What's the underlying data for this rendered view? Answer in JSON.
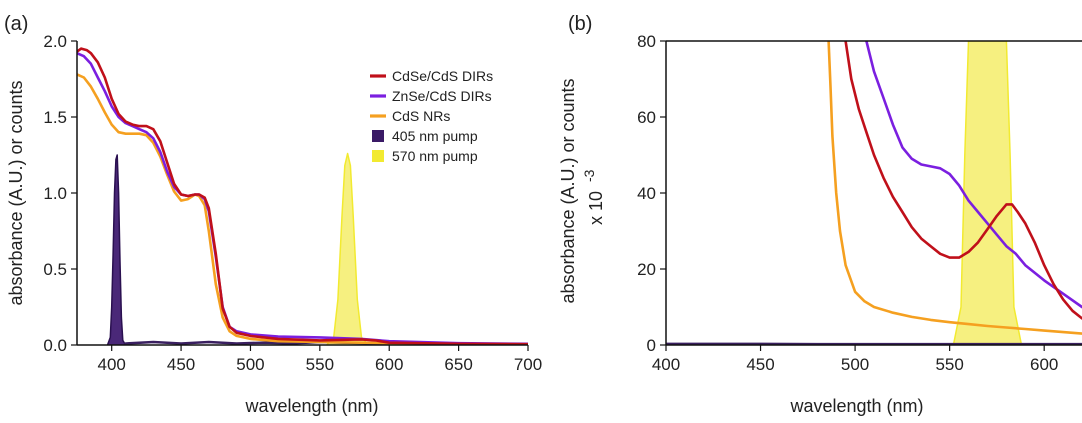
{
  "chart_data": [
    {
      "type": "line",
      "panel_label": "(a)",
      "xlabel": "wavelength (nm)",
      "ylabel": "absorbance (A.U.) or counts",
      "ylabel_suffix": "",
      "xlim": [
        375,
        700
      ],
      "ylim": [
        0,
        2.0
      ],
      "xticks": [
        400,
        450,
        500,
        550,
        600,
        650,
        700
      ],
      "yticks": [
        0.0,
        0.5,
        1.0,
        1.5,
        2.0
      ],
      "ytick_labels": [
        "0.0",
        "0.5",
        "1.0",
        "1.5",
        "2.0"
      ],
      "legend_position": "top-right",
      "legend": [
        {
          "label": "CdSe/CdS DIRs",
          "color": "#c0101a",
          "marker": "line"
        },
        {
          "label": "ZnSe/CdS DIRs",
          "color": "#7b1fe0",
          "marker": "line"
        },
        {
          "label": "CdS NRs",
          "color": "#f5a020",
          "marker": "line"
        },
        {
          "label": "405 nm pump",
          "color": "#3a1a66",
          "marker": "box"
        },
        {
          "label": "570 nm pump",
          "color": "#f2ea30",
          "marker": "box"
        }
      ],
      "series": [
        {
          "color": "#f2ea30",
          "fill": "#f6f080",
          "filled": true,
          "x": [
            555,
            560,
            563,
            566,
            568,
            570,
            572,
            574,
            577,
            580,
            585
          ],
          "y": [
            0.0,
            0.05,
            0.3,
            0.85,
            1.18,
            1.26,
            1.18,
            0.85,
            0.3,
            0.05,
            0.0
          ]
        },
        {
          "color": "#2a1050",
          "fill": "#4a2878",
          "filled": true,
          "x": [
            397,
            399,
            400,
            401,
            402,
            403,
            404,
            405,
            406,
            407,
            408,
            410
          ],
          "y": [
            0.0,
            0.05,
            0.25,
            0.6,
            1.0,
            1.22,
            1.25,
            1.0,
            0.55,
            0.18,
            0.03,
            0.0
          ]
        },
        {
          "color": "#3a2060",
          "filled": false,
          "x": [
            410,
            430,
            450,
            470,
            490,
            510,
            530,
            550,
            570,
            590,
            610,
            640,
            670,
            700
          ],
          "y": [
            0.01,
            0.02,
            0.01,
            0.02,
            0.01,
            0.015,
            0.01,
            0.02,
            0.015,
            0.01,
            0.01,
            0.01,
            0.005,
            0.005
          ]
        },
        {
          "color": "#f5a020",
          "filled": false,
          "x": [
            375,
            380,
            385,
            390,
            395,
            400,
            405,
            410,
            415,
            420,
            425,
            430,
            435,
            440,
            445,
            450,
            455,
            460,
            463,
            467,
            470,
            475,
            480,
            485,
            490,
            500,
            520,
            550,
            600,
            650,
            700
          ],
          "y": [
            1.78,
            1.76,
            1.7,
            1.62,
            1.53,
            1.45,
            1.4,
            1.39,
            1.39,
            1.39,
            1.38,
            1.33,
            1.24,
            1.12,
            1.01,
            0.95,
            0.96,
            0.99,
            0.98,
            0.92,
            0.75,
            0.4,
            0.18,
            0.09,
            0.06,
            0.04,
            0.025,
            0.02,
            0.012,
            0.008,
            0.005
          ]
        },
        {
          "color": "#7b1fe0",
          "filled": false,
          "x": [
            375,
            380,
            385,
            390,
            395,
            400,
            405,
            410,
            415,
            420,
            425,
            430,
            435,
            440,
            445,
            450,
            455,
            460,
            463,
            467,
            470,
            475,
            480,
            485,
            490,
            500,
            520,
            550,
            580,
            600,
            650,
            700
          ],
          "y": [
            1.92,
            1.9,
            1.85,
            1.76,
            1.67,
            1.57,
            1.5,
            1.46,
            1.44,
            1.42,
            1.4,
            1.36,
            1.27,
            1.14,
            1.04,
            0.99,
            0.98,
            0.99,
            0.99,
            0.96,
            0.88,
            0.58,
            0.25,
            0.12,
            0.09,
            0.07,
            0.055,
            0.05,
            0.04,
            0.025,
            0.012,
            0.008
          ]
        },
        {
          "color": "#c0101a",
          "filled": false,
          "x": [
            375,
            378,
            382,
            385,
            390,
            395,
            400,
            405,
            410,
            415,
            420,
            425,
            430,
            435,
            440,
            445,
            450,
            455,
            460,
            463,
            467,
            470,
            475,
            480,
            485,
            490,
            500,
            520,
            550,
            570,
            580,
            590,
            600,
            650,
            700
          ],
          "y": [
            1.93,
            1.95,
            1.94,
            1.92,
            1.86,
            1.76,
            1.62,
            1.52,
            1.47,
            1.45,
            1.44,
            1.44,
            1.42,
            1.34,
            1.2,
            1.06,
            0.99,
            0.98,
            0.99,
            0.99,
            0.97,
            0.9,
            0.6,
            0.24,
            0.12,
            0.08,
            0.06,
            0.04,
            0.03,
            0.035,
            0.037,
            0.03,
            0.015,
            0.008,
            0.005
          ]
        }
      ]
    },
    {
      "type": "line",
      "panel_label": "(b)",
      "xlabel": "wavelength (nm)",
      "ylabel": "absorbance (A.U.) or counts",
      "ylabel_suffix": "x 10",
      "ylabel_exponent": "-3",
      "xlim": [
        400,
        620
      ],
      "ylim": [
        0,
        80
      ],
      "xticks": [
        400,
        450,
        500,
        550,
        600
      ],
      "yticks": [
        0,
        20,
        40,
        60,
        80
      ],
      "ytick_labels": [
        "0",
        "20",
        "40",
        "60",
        "80"
      ],
      "series": [
        {
          "color": "#f2ea30",
          "fill": "#f6f080",
          "filled": true,
          "x": [
            552,
            556,
            558,
            560,
            565,
            570,
            575,
            580,
            582,
            584,
            588
          ],
          "y": [
            0,
            10,
            50,
            80,
            80,
            80,
            80,
            80,
            50,
            10,
            0
          ]
        },
        {
          "color": "#f5a020",
          "filled": false,
          "x": [
            486,
            487,
            488,
            490,
            492,
            495,
            500,
            505,
            510,
            520,
            530,
            540,
            550,
            560,
            570,
            580,
            590,
            600,
            610,
            620
          ],
          "y": [
            80,
            68,
            55,
            40,
            30,
            21,
            14,
            11.5,
            10,
            8.5,
            7.4,
            6.6,
            6.0,
            5.5,
            5.0,
            4.6,
            4.2,
            3.8,
            3.4,
            3.0
          ]
        },
        {
          "color": "#7b1fe0",
          "filled": false,
          "x": [
            506,
            510,
            515,
            520,
            525,
            530,
            535,
            540,
            545,
            550,
            555,
            560,
            565,
            570,
            575,
            580,
            585,
            590,
            595,
            600,
            610,
            620
          ],
          "y": [
            80,
            72,
            65,
            58,
            52,
            49,
            47.5,
            47,
            46.5,
            45,
            42,
            38,
            35,
            32,
            29,
            26,
            24,
            21,
            19,
            17,
            13.5,
            10
          ]
        },
        {
          "color": "#c0101a",
          "filled": false,
          "x": [
            495,
            498,
            502,
            506,
            510,
            515,
            520,
            525,
            530,
            535,
            540,
            545,
            550,
            555,
            560,
            565,
            570,
            575,
            580,
            583,
            586,
            590,
            595,
            600,
            605,
            610,
            615,
            620
          ],
          "y": [
            80,
            70,
            62,
            56,
            50,
            44,
            39,
            35,
            31,
            28,
            26,
            24,
            23,
            23,
            24.5,
            27,
            30.5,
            34,
            37,
            37,
            35,
            32,
            27,
            21,
            16,
            12,
            9,
            7
          ]
        },
        {
          "color": "#3a2060",
          "filled": false,
          "x": [
            400,
            440,
            480,
            520,
            560,
            600,
            620
          ],
          "y": [
            0.3,
            0.3,
            0.2,
            0.2,
            0.2,
            0.2,
            0.2
          ]
        }
      ]
    }
  ]
}
